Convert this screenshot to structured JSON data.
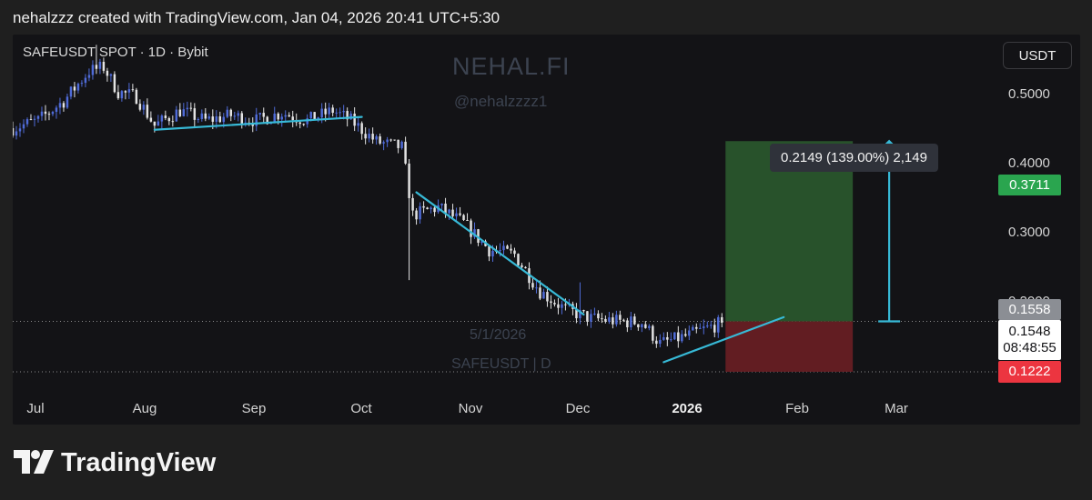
{
  "header": {
    "text": "nehalzzz created with TradingView.com, Jan 04, 2026 20:41 UTC+5:30"
  },
  "symbol_label": "SAFEUSDT SPOT · 1D · Bybit",
  "currency_button": "USDT",
  "watermarks": {
    "brand": "NEHAL.FI",
    "handle": "@nehalzzzz1",
    "date": "5/1/2026",
    "symbol": "SAFEUSDT | D"
  },
  "tooltip": "0.2149 (139.00%) 2,149",
  "badges": {
    "target": "0.3711",
    "entry": "0.1558",
    "current_price": "0.1548",
    "countdown": "08:48:55",
    "stop": "0.1222"
  },
  "colors": {
    "background": "#131316",
    "bull_candle": "#4f6bd8",
    "bear_candle": "#e3e3e3",
    "trendline": "#37b9d6",
    "target_zone": "#2d5e2f",
    "stop_zone": "#6b1f24",
    "target_badge": "#2aa54f",
    "stop_badge": "#ec3540"
  },
  "footer": {
    "logo_icon": "tradingview-logo-icon",
    "logo_text": "TradingView"
  },
  "chart_data": {
    "type": "candlestick",
    "symbol": "SAFEUSDT",
    "timeframe": "1D",
    "exchange": "Bybit",
    "y_scale": "log",
    "y_ticks": [
      "0.5000",
      "0.4000",
      "0.3000",
      "0.2000"
    ],
    "ylim": [
      0.11,
      0.62
    ],
    "x_ticks": [
      "Jul",
      "Aug",
      "Sep",
      "Oct",
      "Nov",
      "Dec",
      "2026",
      "Feb",
      "Mar"
    ],
    "x_tick_dates": [
      "2025-07-01",
      "2025-08-01",
      "2025-09-01",
      "2025-10-01",
      "2025-11-01",
      "2025-12-01",
      "2026-01-01",
      "2026-02-01",
      "2026-03-01"
    ],
    "xlim": [
      "2025-06-23",
      "2026-03-19"
    ],
    "price_path": [
      [
        "2025-06-23",
        0.395
      ],
      [
        "2025-06-30",
        0.41
      ],
      [
        "2025-07-07",
        0.45
      ],
      [
        "2025-07-14",
        0.52
      ],
      [
        "2025-07-18",
        0.53
      ],
      [
        "2025-07-22",
        0.47
      ],
      [
        "2025-07-27",
        0.46
      ],
      [
        "2025-08-01",
        0.4
      ],
      [
        "2025-08-08",
        0.43
      ],
      [
        "2025-08-15",
        0.41
      ],
      [
        "2025-08-22",
        0.42
      ],
      [
        "2025-08-29",
        0.41
      ],
      [
        "2025-09-05",
        0.425
      ],
      [
        "2025-09-12",
        0.41
      ],
      [
        "2025-09-19",
        0.43
      ],
      [
        "2025-09-24",
        0.41
      ],
      [
        "2025-10-01",
        0.37
      ],
      [
        "2025-10-08",
        0.36
      ],
      [
        "2025-10-11",
        0.26
      ],
      [
        "2025-10-18",
        0.27
      ],
      [
        "2025-10-25",
        0.25
      ],
      [
        "2025-11-01",
        0.22
      ],
      [
        "2025-11-08",
        0.215
      ],
      [
        "2025-11-15",
        0.18
      ],
      [
        "2025-11-22",
        0.165
      ],
      [
        "2025-11-29",
        0.158
      ],
      [
        "2025-12-06",
        0.156
      ],
      [
        "2025-12-13",
        0.155
      ],
      [
        "2025-12-18",
        0.14
      ],
      [
        "2025-12-25",
        0.145
      ],
      [
        "2026-01-04",
        0.1548
      ]
    ],
    "trendlines": [
      {
        "name": "upper-range-line",
        "from": [
          "2025-08-01",
          0.392
        ],
        "to": [
          "2025-09-27",
          0.417
        ]
      },
      {
        "name": "descending-line",
        "from": [
          "2025-10-12",
          0.29
        ],
        "to": [
          "2025-11-27",
          0.161
        ]
      },
      {
        "name": "ascending-line",
        "from": [
          "2025-12-19",
          0.128
        ],
        "to": [
          "2026-01-21",
          0.159
        ]
      }
    ],
    "position": {
      "type": "long",
      "start": "2026-01-05",
      "end": "2026-02-09",
      "entry": 0.1558,
      "target": 0.3711,
      "stop": 0.1222,
      "target_change": 0.2149,
      "target_change_pct": 139.0,
      "target_ticks": 2149
    },
    "projection_arrow": {
      "date": "2026-02-19",
      "from": 0.1558,
      "to": 0.3711
    },
    "current_price": 0.1548,
    "countdown": "08:48:55"
  }
}
